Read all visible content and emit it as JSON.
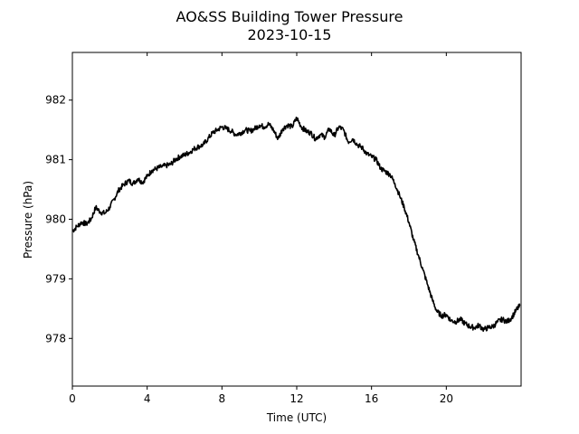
{
  "chart_data": {
    "type": "line",
    "title": "AO&SS Building Tower Pressure",
    "subtitle": "2023-10-15",
    "xlabel": "Time (UTC)",
    "ylabel": "Pressure (hPa)",
    "xlim": [
      0,
      24
    ],
    "ylim": [
      977.2,
      982.8
    ],
    "x_ticks": [
      0,
      4,
      8,
      12,
      16,
      20
    ],
    "y_ticks": [
      978,
      979,
      980,
      981,
      982
    ],
    "grid": false,
    "legend": "none",
    "series": [
      {
        "color": "#000000",
        "x": [
          0,
          0.25,
          0.5,
          0.75,
          1.0,
          1.25,
          1.5,
          1.75,
          2.0,
          2.25,
          2.5,
          2.75,
          3.0,
          3.25,
          3.5,
          3.75,
          4.0,
          4.25,
          4.5,
          4.75,
          5.0,
          5.25,
          5.5,
          5.75,
          6.0,
          6.25,
          6.5,
          6.75,
          7.0,
          7.25,
          7.5,
          7.75,
          8.0,
          8.25,
          8.5,
          8.75,
          9.0,
          9.25,
          9.5,
          9.75,
          10.0,
          10.25,
          10.5,
          10.75,
          11.0,
          11.25,
          11.5,
          11.75,
          12.0,
          12.25,
          12.5,
          12.75,
          13.0,
          13.25,
          13.5,
          13.75,
          14.0,
          14.25,
          14.5,
          14.75,
          15.0,
          15.25,
          15.5,
          15.75,
          16.0,
          16.25,
          16.5,
          16.75,
          17.0,
          17.25,
          17.5,
          17.75,
          18.0,
          18.25,
          18.5,
          18.75,
          19.0,
          19.25,
          19.5,
          19.75,
          20.0,
          20.25,
          20.5,
          20.75,
          21.0,
          21.25,
          21.5,
          21.75,
          22.0,
          22.25,
          22.5,
          22.75,
          23.0,
          23.25,
          23.5,
          23.75,
          23.95
        ],
        "y": [
          979.8,
          979.88,
          979.95,
          979.92,
          980.0,
          980.2,
          980.12,
          980.1,
          980.2,
          980.35,
          980.5,
          980.58,
          980.65,
          980.6,
          980.68,
          980.62,
          980.72,
          980.82,
          980.85,
          980.88,
          980.9,
          980.92,
          981.0,
          981.05,
          981.08,
          981.12,
          981.18,
          981.22,
          981.25,
          981.35,
          981.45,
          981.5,
          981.55,
          981.52,
          981.48,
          981.42,
          981.45,
          981.5,
          981.48,
          981.52,
          981.58,
          981.55,
          981.6,
          981.5,
          981.35,
          981.52,
          981.58,
          981.55,
          981.7,
          981.55,
          981.48,
          981.45,
          981.35,
          981.42,
          981.38,
          981.52,
          981.4,
          981.55,
          981.5,
          981.3,
          981.35,
          981.25,
          981.2,
          981.1,
          981.05,
          981.0,
          980.85,
          980.8,
          980.75,
          980.6,
          980.4,
          980.2,
          979.95,
          979.65,
          979.4,
          979.15,
          978.9,
          978.65,
          978.45,
          978.38,
          978.4,
          978.3,
          978.28,
          978.32,
          978.25,
          978.2,
          978.18,
          978.22,
          978.15,
          978.18,
          978.2,
          978.28,
          978.32,
          978.28,
          978.35,
          978.48,
          978.55
        ]
      }
    ]
  }
}
